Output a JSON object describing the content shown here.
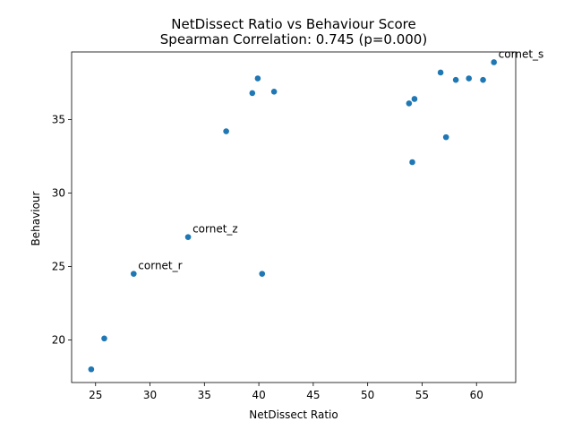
{
  "chart_data": {
    "type": "scatter",
    "title": "NetDissect Ratio vs Behaviour Score",
    "subtitle": "Spearman Correlation: 0.745 (p=0.000)",
    "xlabel": "NetDissect Ratio",
    "ylabel": "Behaviour",
    "xlim": [
      22.8,
      63.6
    ],
    "ylim": [
      17.1,
      39.6
    ],
    "xticks": [
      25,
      30,
      35,
      40,
      45,
      50,
      55,
      60
    ],
    "yticks": [
      20,
      25,
      30,
      35
    ],
    "grid": false,
    "marker_color": "#1f77b4",
    "points": [
      {
        "x": 24.6,
        "y": 18.0
      },
      {
        "x": 25.8,
        "y": 20.1
      },
      {
        "x": 28.5,
        "y": 24.5,
        "label": "cornet_r"
      },
      {
        "x": 33.5,
        "y": 27.0,
        "label": "cornet_z"
      },
      {
        "x": 37.0,
        "y": 34.2
      },
      {
        "x": 39.4,
        "y": 36.8
      },
      {
        "x": 39.9,
        "y": 37.8
      },
      {
        "x": 40.3,
        "y": 24.5
      },
      {
        "x": 41.4,
        "y": 36.9
      },
      {
        "x": 53.8,
        "y": 36.1
      },
      {
        "x": 54.1,
        "y": 32.1
      },
      {
        "x": 54.3,
        "y": 36.4
      },
      {
        "x": 56.7,
        "y": 38.2
      },
      {
        "x": 57.2,
        "y": 33.8
      },
      {
        "x": 58.1,
        "y": 37.7
      },
      {
        "x": 59.3,
        "y": 37.8
      },
      {
        "x": 60.6,
        "y": 37.7
      },
      {
        "x": 61.6,
        "y": 38.9,
        "label": "cornet_s"
      }
    ]
  }
}
